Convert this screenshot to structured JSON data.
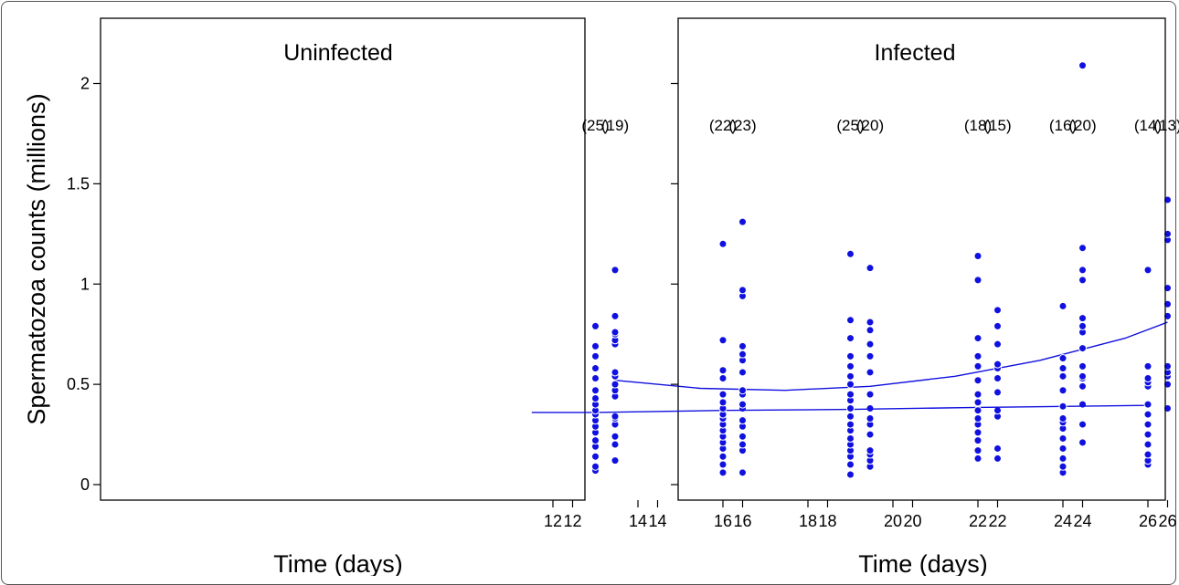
{
  "chart_data": [
    {
      "type": "scatter",
      "title": "Uninfected",
      "xlabel": "Time (days)",
      "ylabel": "Spermatozoa counts (millions)",
      "xlim": [
        11.5,
        26.5
      ],
      "ylim": [
        -0.05,
        2.3
      ],
      "xticks": [
        12,
        14,
        16,
        18,
        20,
        22,
        24,
        26
      ],
      "yticks": [
        0,
        0.5,
        1,
        1.5,
        2
      ],
      "ytick_labels": [
        "0",
        "0.5",
        "1",
        "1.5",
        "2"
      ],
      "point_color": "#1010e0",
      "trend_color": "#1010e0",
      "counts": [
        {
          "x": 13,
          "label": "(19)"
        },
        {
          "x": 16,
          "label": "(23)"
        },
        {
          "x": 19,
          "label": "(20)"
        },
        {
          "x": 22,
          "label": "(15)"
        },
        {
          "x": 24,
          "label": "(20)"
        },
        {
          "x": 26,
          "label": "(13)"
        }
      ],
      "points": [
        {
          "x": 13,
          "ys": [
            0.12,
            0.2,
            0.24,
            0.3,
            0.33,
            0.34,
            0.44,
            0.47,
            0.5,
            0.54,
            0.56,
            0.7,
            0.72,
            0.75,
            0.76,
            0.84,
            1.07
          ]
        },
        {
          "x": 16,
          "ys": [
            0.06,
            0.17,
            0.2,
            0.24,
            0.29,
            0.32,
            0.38,
            0.4,
            0.45,
            0.47,
            0.56,
            0.62,
            0.65,
            0.69,
            0.94,
            0.97,
            1.31
          ]
        },
        {
          "x": 19,
          "ys": [
            0.09,
            0.12,
            0.15,
            0.17,
            0.25,
            0.3,
            0.33,
            0.38,
            0.45,
            0.56,
            0.64,
            0.7,
            0.77,
            0.81,
            1.08
          ]
        },
        {
          "x": 22,
          "ys": [
            0.13,
            0.18,
            0.34,
            0.37,
            0.46,
            0.53,
            0.58,
            0.6,
            0.7,
            0.79,
            0.87
          ]
        },
        {
          "x": 24,
          "ys": [
            0.21,
            0.3,
            0.4,
            0.49,
            0.53,
            0.54,
            0.59,
            0.68,
            0.76,
            0.79,
            0.83,
            1.02,
            1.07,
            1.18,
            2.09
          ]
        },
        {
          "x": 26,
          "ys": [
            0.38,
            0.5,
            0.54,
            0.56,
            0.59,
            0.84,
            0.9,
            0.98,
            1.22,
            1.25,
            1.42
          ]
        }
      ],
      "trend": {
        "x": [
          13,
          15,
          17,
          19,
          21,
          23,
          25,
          26
        ],
        "y": [
          0.52,
          0.48,
          0.47,
          0.49,
          0.54,
          0.62,
          0.73,
          0.81
        ]
      }
    },
    {
      "type": "scatter",
      "title": "Infected",
      "xlabel": "Time (days)",
      "ylabel": "",
      "xlim": [
        11.5,
        26.5
      ],
      "ylim": [
        -0.05,
        2.3
      ],
      "xticks": [
        12,
        14,
        16,
        18,
        20,
        22,
        24,
        26
      ],
      "yticks": [
        0,
        0.5,
        1,
        1.5,
        2
      ],
      "point_color": "#1010e0",
      "trend_color": "#1010e0",
      "counts": [
        {
          "x": 13,
          "label": "(25)"
        },
        {
          "x": 16,
          "label": "(22)"
        },
        {
          "x": 19,
          "label": "(25)"
        },
        {
          "x": 22,
          "label": "(18)"
        },
        {
          "x": 24,
          "label": "(16)"
        },
        {
          "x": 26,
          "label": "(14)"
        }
      ],
      "points": [
        {
          "x": 13,
          "ys": [
            0.07,
            0.09,
            0.14,
            0.19,
            0.22,
            0.26,
            0.29,
            0.32,
            0.35,
            0.37,
            0.4,
            0.43,
            0.47,
            0.53,
            0.58,
            0.64,
            0.69,
            0.79
          ]
        },
        {
          "x": 16,
          "ys": [
            0.06,
            0.1,
            0.14,
            0.18,
            0.21,
            0.24,
            0.27,
            0.3,
            0.33,
            0.35,
            0.38,
            0.41,
            0.45,
            0.53,
            0.57,
            0.72,
            1.2
          ]
        },
        {
          "x": 19,
          "ys": [
            0.05,
            0.1,
            0.14,
            0.17,
            0.2,
            0.23,
            0.27,
            0.3,
            0.34,
            0.38,
            0.42,
            0.45,
            0.5,
            0.54,
            0.59,
            0.64,
            0.73,
            0.82,
            1.15
          ]
        },
        {
          "x": 22,
          "ys": [
            0.13,
            0.17,
            0.22,
            0.26,
            0.3,
            0.33,
            0.37,
            0.41,
            0.45,
            0.52,
            0.59,
            0.64,
            0.73,
            1.02,
            1.14
          ]
        },
        {
          "x": 24,
          "ys": [
            0.06,
            0.09,
            0.13,
            0.18,
            0.23,
            0.28,
            0.31,
            0.33,
            0.39,
            0.47,
            0.54,
            0.58,
            0.63,
            0.89
          ]
        },
        {
          "x": 26,
          "ys": [
            0.1,
            0.12,
            0.15,
            0.2,
            0.25,
            0.3,
            0.35,
            0.4,
            0.49,
            0.51,
            0.53,
            0.59,
            1.07
          ]
        }
      ],
      "trend": {
        "x": [
          11.5,
          13,
          16,
          19,
          22,
          24,
          26
        ],
        "y": [
          0.36,
          0.36,
          0.37,
          0.375,
          0.385,
          0.39,
          0.395
        ]
      }
    }
  ]
}
